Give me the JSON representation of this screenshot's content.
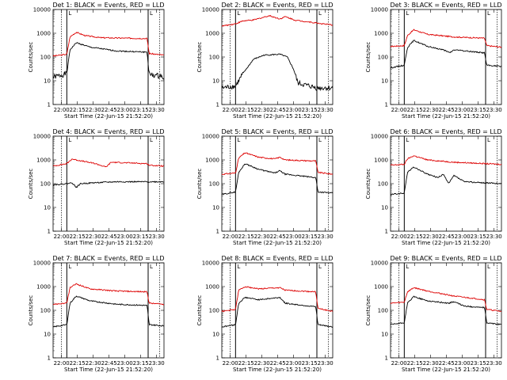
{
  "chart_data": {
    "type": "line",
    "layout": "3x3 grid of log-scale time series",
    "x_ticks": [
      "22:00",
      "22:15",
      "22:30",
      "22:45",
      "23:00",
      "23:15",
      "23:30"
    ],
    "x_range_minutes_from_2152": [
      0,
      105
    ],
    "xlabel": "Start Time (22-Jun-15 21:52:20)",
    "ylabel": "Counts/sec",
    "y_scale": "log",
    "y_ticks": [
      "1",
      "10",
      "100",
      "1000",
      "10000"
    ],
    "ylim": [
      1,
      10000
    ],
    "legend": "BLACK = Events, RED = LLD",
    "series_names": [
      "Events",
      "LLD"
    ],
    "series_colors": {
      "events": "#000000",
      "lld": "#dd0000"
    },
    "markers": {
      "dashed_at_minutes": [
        8,
        101
      ],
      "solid_at_minutes": [
        13,
        90
      ],
      "tag_label": "L"
    },
    "panels": [
      {
        "title": "Det 1: BLACK = Events, RED = LLD",
        "detector": 1,
        "events": [
          [
            0,
            14
          ],
          [
            13,
            20
          ],
          [
            16,
            200
          ],
          [
            22,
            400
          ],
          [
            35,
            260
          ],
          [
            60,
            180
          ],
          [
            89,
            160
          ],
          [
            91,
            18
          ],
          [
            105,
            15
          ]
        ],
        "lld": [
          [
            0,
            110
          ],
          [
            13,
            130
          ],
          [
            16,
            700
          ],
          [
            22,
            1100
          ],
          [
            30,
            800
          ],
          [
            45,
            650
          ],
          [
            89,
            600
          ],
          [
            91,
            140
          ],
          [
            105,
            120
          ]
        ]
      },
      {
        "title": "Det 2: BLACK = Events, RED = LLD",
        "detector": 2,
        "events": [
          [
            0,
            5
          ],
          [
            13,
            6
          ],
          [
            20,
            20
          ],
          [
            30,
            80
          ],
          [
            40,
            120
          ],
          [
            55,
            130
          ],
          [
            62,
            100
          ],
          [
            68,
            30
          ],
          [
            72,
            8
          ],
          [
            90,
            5
          ],
          [
            105,
            5
          ]
        ],
        "lld": [
          [
            0,
            2000
          ],
          [
            13,
            2500
          ],
          [
            20,
            3300
          ],
          [
            30,
            3600
          ],
          [
            45,
            5500
          ],
          [
            55,
            4000
          ],
          [
            60,
            5000
          ],
          [
            70,
            3500
          ],
          [
            90,
            2700
          ],
          [
            105,
            2200
          ]
        ]
      },
      {
        "title": "Det 3: BLACK = Events, RED = LLD",
        "detector": 3,
        "events": [
          [
            0,
            35
          ],
          [
            13,
            45
          ],
          [
            16,
            250
          ],
          [
            22,
            500
          ],
          [
            35,
            280
          ],
          [
            50,
            200
          ],
          [
            56,
            150
          ],
          [
            60,
            200
          ],
          [
            89,
            150
          ],
          [
            91,
            45
          ],
          [
            105,
            40
          ]
        ],
        "lld": [
          [
            0,
            280
          ],
          [
            13,
            300
          ],
          [
            16,
            800
          ],
          [
            22,
            1400
          ],
          [
            35,
            900
          ],
          [
            60,
            700
          ],
          [
            89,
            620
          ],
          [
            91,
            300
          ],
          [
            105,
            260
          ]
        ]
      },
      {
        "title": "Det 4: BLACK = Events, RED = LLD",
        "detector": 4,
        "events": [
          [
            0,
            90
          ],
          [
            13,
            100
          ],
          [
            18,
            110
          ],
          [
            22,
            70
          ],
          [
            26,
            100
          ],
          [
            40,
            110
          ],
          [
            60,
            120
          ],
          [
            90,
            120
          ],
          [
            105,
            120
          ]
        ],
        "lld": [
          [
            0,
            550
          ],
          [
            13,
            700
          ],
          [
            18,
            1100
          ],
          [
            22,
            1000
          ],
          [
            40,
            700
          ],
          [
            50,
            500
          ],
          [
            55,
            800
          ],
          [
            89,
            700
          ],
          [
            91,
            600
          ],
          [
            105,
            550
          ]
        ]
      },
      {
        "title": "Det 5: BLACK = Events, RED = LLD",
        "detector": 5,
        "events": [
          [
            0,
            35
          ],
          [
            13,
            45
          ],
          [
            16,
            300
          ],
          [
            22,
            700
          ],
          [
            35,
            400
          ],
          [
            50,
            280
          ],
          [
            55,
            350
          ],
          [
            60,
            250
          ],
          [
            89,
            180
          ],
          [
            91,
            45
          ],
          [
            105,
            40
          ]
        ],
        "lld": [
          [
            0,
            250
          ],
          [
            13,
            280
          ],
          [
            16,
            1200
          ],
          [
            22,
            2000
          ],
          [
            35,
            1300
          ],
          [
            50,
            1100
          ],
          [
            55,
            1300
          ],
          [
            60,
            1000
          ],
          [
            89,
            900
          ],
          [
            91,
            300
          ],
          [
            105,
            250
          ]
        ]
      },
      {
        "title": "Det 6: BLACK = Events, RED = LLD",
        "detector": 6,
        "events": [
          [
            0,
            35
          ],
          [
            13,
            40
          ],
          [
            16,
            300
          ],
          [
            22,
            500
          ],
          [
            35,
            250
          ],
          [
            45,
            180
          ],
          [
            50,
            250
          ],
          [
            55,
            100
          ],
          [
            60,
            220
          ],
          [
            70,
            120
          ],
          [
            105,
            100
          ]
        ],
        "lld": [
          [
            0,
            600
          ],
          [
            13,
            650
          ],
          [
            16,
            1100
          ],
          [
            22,
            1500
          ],
          [
            35,
            1000
          ],
          [
            60,
            800
          ],
          [
            89,
            700
          ],
          [
            105,
            650
          ]
        ]
      },
      {
        "title": "Det 7: BLACK = Events, RED = LLD",
        "detector": 7,
        "events": [
          [
            0,
            20
          ],
          [
            13,
            25
          ],
          [
            16,
            200
          ],
          [
            22,
            400
          ],
          [
            35,
            250
          ],
          [
            60,
            180
          ],
          [
            89,
            160
          ],
          [
            91,
            25
          ],
          [
            105,
            22
          ]
        ],
        "lld": [
          [
            0,
            180
          ],
          [
            13,
            200
          ],
          [
            16,
            900
          ],
          [
            22,
            1300
          ],
          [
            35,
            800
          ],
          [
            60,
            650
          ],
          [
            89,
            600
          ],
          [
            91,
            200
          ],
          [
            105,
            180
          ]
        ]
      },
      {
        "title": "Det 8: BLACK = Events, RED = LLD",
        "detector": 8,
        "events": [
          [
            0,
            20
          ],
          [
            13,
            25
          ],
          [
            16,
            200
          ],
          [
            22,
            350
          ],
          [
            35,
            280
          ],
          [
            55,
            350
          ],
          [
            60,
            200
          ],
          [
            89,
            140
          ],
          [
            91,
            25
          ],
          [
            105,
            20
          ]
        ],
        "lld": [
          [
            0,
            90
          ],
          [
            13,
            110
          ],
          [
            16,
            700
          ],
          [
            22,
            1000
          ],
          [
            35,
            800
          ],
          [
            55,
            900
          ],
          [
            60,
            700
          ],
          [
            89,
            600
          ],
          [
            91,
            120
          ],
          [
            105,
            90
          ]
        ]
      },
      {
        "title": "Det 9: BLACK = Events, RED = LLD",
        "detector": 9,
        "events": [
          [
            0,
            25
          ],
          [
            13,
            30
          ],
          [
            16,
            200
          ],
          [
            22,
            380
          ],
          [
            35,
            250
          ],
          [
            55,
            200
          ],
          [
            60,
            230
          ],
          [
            70,
            150
          ],
          [
            89,
            130
          ],
          [
            91,
            30
          ],
          [
            105,
            25
          ]
        ],
        "lld": [
          [
            0,
            200
          ],
          [
            13,
            220
          ],
          [
            16,
            600
          ],
          [
            22,
            900
          ],
          [
            35,
            650
          ],
          [
            60,
            400
          ],
          [
            89,
            280
          ],
          [
            91,
            110
          ],
          [
            105,
            90
          ]
        ]
      }
    ]
  }
}
